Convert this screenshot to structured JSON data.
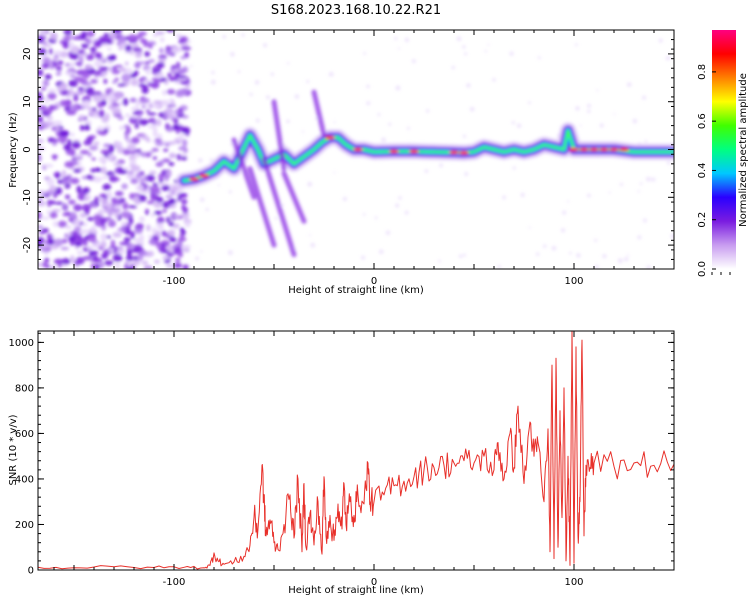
{
  "title": "S168.2023.168.10.22.R21",
  "chart_data": [
    {
      "type": "heatmap",
      "panel": "spectrogram",
      "xlabel": "Height of straight line (km)",
      "ylabel": "Frequency (Hz)",
      "xlim": [
        -168,
        150
      ],
      "ylim": [
        -25,
        25
      ],
      "xticks": [
        -100,
        0,
        100
      ],
      "yticks": [
        -20,
        -10,
        0,
        10,
        20
      ],
      "noise_region_x": [
        -168,
        -93
      ],
      "ridge": {
        "x": [
          -95,
          -90,
          -85,
          -80,
          -75,
          -70,
          -66,
          -62,
          -58,
          -55,
          -50,
          -45,
          -40,
          -35,
          -30,
          -26,
          -22,
          -18,
          -14,
          -10,
          -5,
          0,
          10,
          20,
          30,
          40,
          45,
          50,
          55,
          60,
          65,
          70,
          75,
          80,
          85,
          90,
          95,
          97,
          100,
          110,
          120,
          130,
          140,
          150
        ],
        "y": [
          -6.5,
          -6.2,
          -5.5,
          -4.5,
          -2.5,
          -4,
          -0.5,
          3,
          0,
          -3,
          -2,
          -1,
          -3,
          -1.5,
          0,
          1.5,
          2.5,
          2.5,
          1,
          0,
          0,
          -0.5,
          -0.4,
          -0.4,
          -0.5,
          -0.6,
          -0.7,
          -0.5,
          0.5,
          0,
          -0.5,
          0,
          -0.5,
          0,
          1,
          0.5,
          0,
          4,
          0,
          0,
          0,
          -0.5,
          -0.5,
          -0.5
        ]
      },
      "hot_spots_x": [
        -90,
        -85,
        -22,
        -8,
        10,
        20,
        40,
        45,
        100,
        105,
        110,
        115,
        120,
        125
      ]
    },
    {
      "type": "line",
      "panel": "snr",
      "xlabel": "Height of straight line (km)",
      "ylabel": "SNR (10 * v/v)",
      "xlim": [
        -168,
        150
      ],
      "ylim": [
        0,
        1050
      ],
      "xticks": [
        -100,
        0,
        100
      ],
      "yticks": [
        0,
        200,
        400,
        600,
        800,
        1000
      ],
      "series": [
        {
          "name": "SNR",
          "color": "#e8302a",
          "x": [
            -168,
            -150,
            -130,
            -110,
            -95,
            -85,
            -82,
            -80,
            -78,
            -75,
            -70,
            -65,
            -62,
            -60,
            -58,
            -56,
            -55,
            -54,
            -52,
            -50,
            -48,
            -45,
            -42,
            -40,
            -38,
            -36,
            -35,
            -34,
            -32,
            -30,
            -28,
            -26,
            -25,
            -24,
            -22,
            -20,
            -18,
            -16,
            -15,
            -14,
            -12,
            -10,
            -8,
            -5,
            -3,
            -2,
            0,
            5,
            10,
            15,
            20,
            25,
            30,
            35,
            40,
            45,
            50,
            55,
            60,
            62,
            65,
            68,
            70,
            72,
            75,
            78,
            80,
            82,
            85,
            87,
            88,
            89,
            90,
            91,
            92,
            93,
            94,
            95,
            96,
            97,
            98,
            99,
            100,
            101,
            102,
            103,
            104,
            105,
            106,
            108,
            110,
            120,
            130,
            140,
            150
          ],
          "y": [
            12,
            10,
            14,
            11,
            12,
            10,
            20,
            75,
            40,
            25,
            35,
            60,
            110,
            230,
            180,
            460,
            300,
            150,
            220,
            120,
            90,
            200,
            330,
            140,
            400,
            80,
            380,
            100,
            250,
            110,
            300,
            70,
            410,
            150,
            240,
            130,
            290,
            180,
            380,
            200,
            300,
            240,
            330,
            290,
            470,
            300,
            300,
            330,
            370,
            390,
            410,
            440,
            450,
            460,
            470,
            480,
            470,
            500,
            440,
            560,
            400,
            600,
            450,
            720,
            380,
            650,
            500,
            560,
            300,
            620,
            80,
            900,
            50,
            930,
            100,
            700,
            230,
            800,
            40,
            500,
            20,
            1050,
            30,
            980,
            150,
            300,
            1010,
            150,
            460,
            450,
            470,
            455,
            470,
            460,
            465
          ]
        }
      ]
    }
  ],
  "colorbar": {
    "label": "Normalized spectral amplitude",
    "ticks": [
      "0.0",
      "0.2",
      "0.4",
      "0.6",
      "0.8"
    ],
    "tick_values": [
      0,
      0.2,
      0.4,
      0.6,
      0.8
    ],
    "range": [
      0,
      0.97
    ],
    "colors": [
      "#ffffff",
      "#c89cf0",
      "#7a1ce0",
      "#2a00ff",
      "#00c8ff",
      "#00ff80",
      "#40ff00",
      "#ffff00",
      "#ff8000",
      "#ff0000",
      "#ff0080"
    ]
  }
}
